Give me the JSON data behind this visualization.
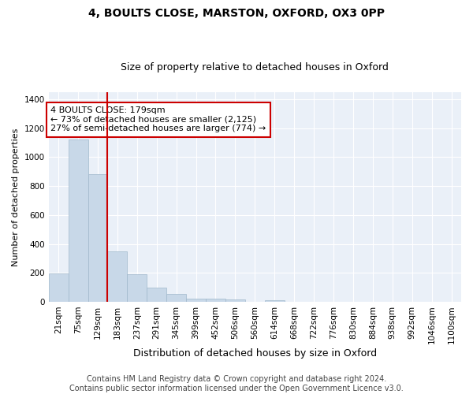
{
  "title1": "4, BOULTS CLOSE, MARSTON, OXFORD, OX3 0PP",
  "title2": "Size of property relative to detached houses in Oxford",
  "xlabel": "Distribution of detached houses by size in Oxford",
  "ylabel": "Number of detached properties",
  "categories": [
    "21sqm",
    "75sqm",
    "129sqm",
    "183sqm",
    "237sqm",
    "291sqm",
    "345sqm",
    "399sqm",
    "452sqm",
    "506sqm",
    "560sqm",
    "614sqm",
    "668sqm",
    "722sqm",
    "776sqm",
    "830sqm",
    "884sqm",
    "938sqm",
    "992sqm",
    "1046sqm",
    "1100sqm"
  ],
  "values": [
    195,
    1120,
    880,
    350,
    190,
    100,
    55,
    22,
    22,
    18,
    0,
    12,
    0,
    0,
    0,
    0,
    0,
    0,
    0,
    0,
    0
  ],
  "bar_color": "#c8d8e8",
  "bar_edgecolor": "#a0b8cc",
  "vline_x_index": 2.5,
  "vline_color": "#cc0000",
  "annotation_text": "4 BOULTS CLOSE: 179sqm\n← 73% of detached houses are smaller (2,125)\n27% of semi-detached houses are larger (774) →",
  "annotation_box_color": "#ffffff",
  "annotation_box_edgecolor": "#cc0000",
  "ylim": [
    0,
    1450
  ],
  "yticks": [
    0,
    200,
    400,
    600,
    800,
    1000,
    1200,
    1400
  ],
  "footer": "Contains HM Land Registry data © Crown copyright and database right 2024.\nContains public sector information licensed under the Open Government Licence v3.0.",
  "plot_bg_color": "#eaf0f8",
  "title1_fontsize": 10,
  "title2_fontsize": 9,
  "xlabel_fontsize": 9,
  "ylabel_fontsize": 8,
  "tick_fontsize": 7.5,
  "footer_fontsize": 7,
  "annotation_fontsize": 8
}
